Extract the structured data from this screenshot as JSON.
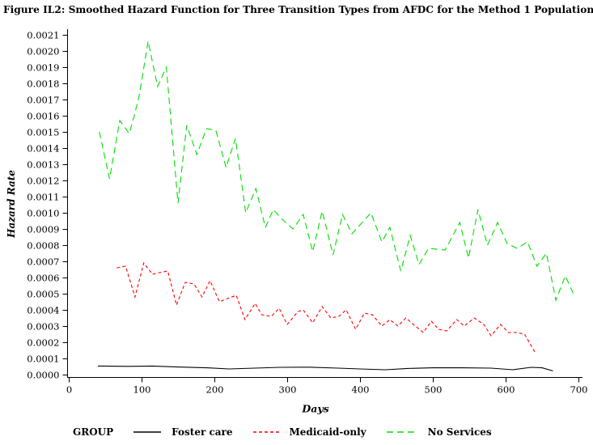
{
  "title": "Figure IL2: Smoothed Hazard Function for Three Transition Types from AFDC for the Method 1 Population–Illinois",
  "legend": {
    "group_label": "GROUP",
    "items": [
      {
        "label": "Foster care",
        "color": "#000000",
        "dasharray": "none"
      },
      {
        "label": "Medicaid-only",
        "color": "#ff0000",
        "dasharray": "4 3"
      },
      {
        "label": "No Services",
        "color": "#00dd00",
        "dasharray": "8 5"
      }
    ]
  },
  "chart_data": {
    "type": "line",
    "title": "Figure IL2: Smoothed Hazard Function for Three Transition Types from AFDC for the Method 1 Population–Illinois",
    "xlabel": "Days",
    "ylabel": "Hazard Rate",
    "xlim": [
      0,
      700
    ],
    "ylim": [
      0,
      0.0021
    ],
    "grid": false,
    "legend_position": "bottom",
    "xticks": [
      0,
      100,
      200,
      300,
      400,
      500,
      600,
      700
    ],
    "yticks": [
      "0.0000",
      "0.0001",
      "0.0002",
      "0.0003",
      "0.0004",
      "0.0005",
      "0.0006",
      "0.0007",
      "0.0008",
      "0.0009",
      "0.0010",
      "0.0011",
      "0.0012",
      "0.0013",
      "0.0014",
      "0.0015",
      "0.0016",
      "0.0017",
      "0.0018",
      "0.0019",
      "0.0020",
      "0.0021"
    ],
    "series": [
      {
        "name": "Foster care",
        "color": "#000000",
        "dasharray": "none",
        "x": [
          40,
          80,
          115,
          150,
          190,
          220,
          255,
          290,
          330,
          370,
          400,
          435,
          465,
          500,
          540,
          580,
          610,
          635,
          650,
          665
        ],
        "y": [
          5.3e-05,
          5.1e-05,
          5.3e-05,
          4.7e-05,
          4.2e-05,
          3.5e-05,
          4e-05,
          4.5e-05,
          4.6e-05,
          4e-05,
          3.5e-05,
          3e-05,
          3.8e-05,
          4.2e-05,
          4.2e-05,
          4e-05,
          3e-05,
          4.5e-05,
          4.2e-05,
          2.3e-05
        ]
      },
      {
        "name": "Medicaid-only",
        "color": "#ff0000",
        "dasharray": "4 3",
        "x": [
          66,
          78,
          91,
          103,
          115,
          124,
          136,
          148,
          160,
          172,
          183,
          194,
          207,
          218,
          230,
          242,
          256,
          265,
          278,
          289,
          300,
          315,
          322,
          335,
          348,
          360,
          371,
          381,
          394,
          406,
          417,
          430,
          441,
          452,
          463,
          476,
          487,
          498,
          508,
          519,
          533,
          543,
          557,
          570,
          580,
          593,
          604,
          615,
          626,
          640
        ],
        "y": [
          0.00066,
          0.00067,
          0.00048,
          0.00069,
          0.00062,
          0.00063,
          0.00064,
          0.00043,
          0.00057,
          0.00056,
          0.00048,
          0.00058,
          0.00045,
          0.00047,
          0.00049,
          0.00034,
          0.00044,
          0.00037,
          0.00036,
          0.00041,
          0.00031,
          0.00039,
          0.0004,
          0.00032,
          0.00042,
          0.00035,
          0.00036,
          0.0004,
          0.00028,
          0.00038,
          0.00037,
          0.0003,
          0.00034,
          0.0003,
          0.00035,
          0.0003,
          0.00026,
          0.00033,
          0.00028,
          0.00027,
          0.00034,
          0.0003,
          0.00035,
          0.00031,
          0.00024,
          0.00031,
          0.00026,
          0.00026,
          0.00025,
          0.00014
        ]
      },
      {
        "name": "No Services",
        "color": "#00dd00",
        "dasharray": "8 5",
        "x": [
          42,
          56,
          70,
          83,
          90,
          97,
          109,
          122,
          134,
          150,
          162,
          176,
          189,
          202,
          216,
          229,
          243,
          257,
          270,
          281,
          293,
          308,
          322,
          335,
          348,
          363,
          376,
          389,
          403,
          415,
          430,
          441,
          456,
          469,
          481,
          494,
          517,
          537,
          549,
          562,
          575,
          589,
          602,
          616,
          630,
          643,
          656,
          669,
          682,
          694
        ],
        "y": [
          0.0015,
          0.00121,
          0.00157,
          0.00149,
          0.0016,
          0.00173,
          0.00206,
          0.00178,
          0.0019,
          0.00106,
          0.00154,
          0.00136,
          0.00152,
          0.00151,
          0.00128,
          0.00146,
          0.001,
          0.00115,
          0.00091,
          0.00102,
          0.00096,
          0.0009,
          0.00099,
          0.00076,
          0.00101,
          0.00074,
          0.00099,
          0.00087,
          0.00094,
          0.001,
          0.00082,
          0.00091,
          0.00064,
          0.00086,
          0.00068,
          0.00078,
          0.00077,
          0.00094,
          0.00072,
          0.00102,
          0.0008,
          0.00094,
          0.00081,
          0.00078,
          0.00082,
          0.00067,
          0.00075,
          0.00046,
          0.00061,
          0.00049
        ]
      }
    ]
  }
}
